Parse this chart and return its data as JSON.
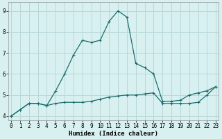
{
  "xlabel": "Humidex (Indice chaleur)",
  "bg_color": "#d8f0f0",
  "grid_color": "#b8d8d8",
  "line_color": "#1a6e6e",
  "x_values": [
    0,
    1,
    2,
    3,
    4,
    5,
    6,
    7,
    8,
    9,
    10,
    11,
    12,
    13,
    14,
    15,
    16,
    17,
    18,
    19,
    20,
    21,
    22,
    23
  ],
  "y_line1": [
    4.0,
    4.3,
    4.6,
    4.6,
    4.5,
    5.2,
    6.0,
    6.9,
    7.6,
    7.5,
    7.6,
    8.5,
    9.0,
    8.7,
    6.5,
    6.3,
    6.0,
    4.7,
    4.7,
    4.75,
    5.0,
    5.1,
    5.2,
    5.4
  ],
  "y_line2": [
    4.0,
    4.3,
    4.6,
    4.6,
    4.5,
    4.6,
    4.65,
    4.65,
    4.65,
    4.7,
    4.8,
    4.9,
    4.95,
    5.0,
    5.0,
    5.05,
    5.1,
    4.6,
    4.6,
    4.6,
    4.6,
    4.65,
    5.0,
    5.4
  ],
  "ylim": [
    3.8,
    9.4
  ],
  "xlim": [
    -0.3,
    23.3
  ],
  "yticks": [
    4,
    5,
    6,
    7,
    8,
    9
  ],
  "xticks": [
    0,
    1,
    2,
    3,
    4,
    5,
    6,
    7,
    8,
    9,
    10,
    11,
    12,
    13,
    14,
    15,
    16,
    17,
    18,
    19,
    20,
    21,
    22,
    23
  ],
  "tick_fontsize": 5.5,
  "label_fontsize": 6.5
}
